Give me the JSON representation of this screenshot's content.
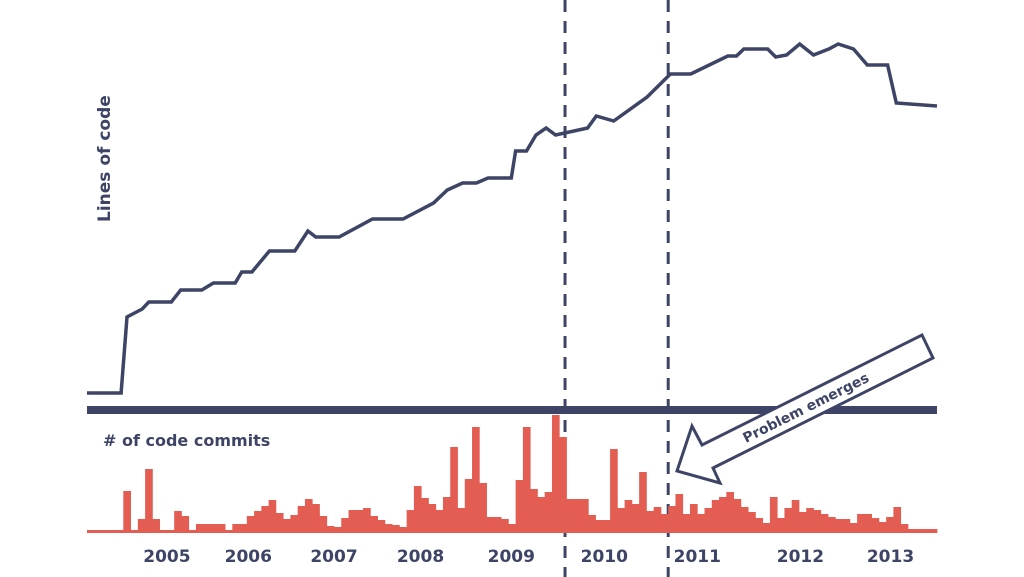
{
  "colors": {
    "line": "#3d4466",
    "bars": "#e35d52",
    "background": "#ffffff"
  },
  "chart_data": [
    {
      "type": "line",
      "title": "",
      "ylabel": "Lines of code",
      "xlabel": "",
      "x_units": "months since start",
      "y_units": "relative (unlabeled axis)",
      "xlim": [
        0,
        117
      ],
      "ylim": [
        0,
        349
      ],
      "grid": false,
      "points": [
        [
          0,
          0
        ],
        [
          4.7,
          0
        ],
        [
          5.5,
          76
        ],
        [
          7.6,
          84
        ],
        [
          8.5,
          91
        ],
        [
          11.6,
          91
        ],
        [
          12.9,
          103
        ],
        [
          15.8,
          103
        ],
        [
          17.4,
          110
        ],
        [
          20.4,
          110
        ],
        [
          21.3,
          121
        ],
        [
          22.7,
          121
        ],
        [
          25.1,
          142
        ],
        [
          28.6,
          142
        ],
        [
          30.4,
          162
        ],
        [
          31.5,
          156
        ],
        [
          34.7,
          156
        ],
        [
          39.3,
          174
        ],
        [
          43.5,
          174
        ],
        [
          47.7,
          190
        ],
        [
          49.6,
          203
        ],
        [
          51.7,
          210
        ],
        [
          53.6,
          210
        ],
        [
          55.2,
          215
        ],
        [
          58.4,
          215
        ],
        [
          59.0,
          242
        ],
        [
          60.5,
          242
        ],
        [
          61.8,
          258
        ],
        [
          63.2,
          265
        ],
        [
          64.5,
          258
        ],
        [
          68.9,
          265
        ],
        [
          70.1,
          277
        ],
        [
          72.5,
          272
        ],
        [
          77.1,
          296
        ],
        [
          80.3,
          319
        ],
        [
          83.1,
          319
        ],
        [
          88.2,
          337
        ],
        [
          89.4,
          337
        ],
        [
          90.4,
          344
        ],
        [
          93.7,
          344
        ],
        [
          94.8,
          336
        ],
        [
          96.3,
          338
        ],
        [
          98.1,
          349
        ],
        [
          100,
          338
        ],
        [
          102.1,
          344
        ],
        [
          103.4,
          349
        ],
        [
          105.5,
          344
        ],
        [
          107.4,
          328
        ],
        [
          110.2,
          328
        ],
        [
          111.4,
          290
        ],
        [
          117,
          287
        ]
      ]
    },
    {
      "type": "bar",
      "title": "",
      "ylabel": "# of code commits",
      "x_units": "months since start",
      "y_units": "relative (unlabeled axis)",
      "ylim": [
        0,
        116
      ],
      "grid": false,
      "segments": [
        [
          5,
          1
        ],
        [
          1,
          40
        ],
        [
          1,
          1
        ],
        [
          1,
          12
        ],
        [
          1,
          62
        ],
        [
          1,
          12
        ],
        [
          2,
          1
        ],
        [
          1,
          20
        ],
        [
          1,
          15
        ],
        [
          1,
          1
        ],
        [
          4,
          7
        ],
        [
          1,
          1
        ],
        [
          2,
          7
        ],
        [
          1,
          15
        ],
        [
          1,
          20
        ],
        [
          1,
          25
        ],
        [
          1,
          31
        ],
        [
          1,
          18
        ],
        [
          1,
          12
        ],
        [
          1,
          16
        ],
        [
          1,
          25
        ],
        [
          1,
          32
        ],
        [
          1,
          27
        ],
        [
          1,
          15
        ],
        [
          1,
          5
        ],
        [
          1,
          4
        ],
        [
          1,
          13
        ],
        [
          2,
          21
        ],
        [
          1,
          23
        ],
        [
          1,
          15
        ],
        [
          1,
          11
        ],
        [
          1,
          7
        ],
        [
          1,
          6
        ],
        [
          1,
          4
        ],
        [
          1,
          21
        ],
        [
          1,
          45
        ],
        [
          1,
          33
        ],
        [
          1,
          27
        ],
        [
          1,
          21
        ],
        [
          1,
          34
        ],
        [
          1,
          84
        ],
        [
          1,
          23
        ],
        [
          1,
          52
        ],
        [
          1,
          104
        ],
        [
          1,
          48
        ],
        [
          2,
          14
        ],
        [
          1,
          12
        ],
        [
          1,
          7
        ],
        [
          1,
          51
        ],
        [
          1,
          104
        ],
        [
          1,
          42
        ],
        [
          1,
          34
        ],
        [
          1,
          39
        ],
        [
          1,
          116
        ],
        [
          1,
          94
        ],
        [
          3,
          32
        ],
        [
          1,
          16
        ],
        [
          2,
          11
        ],
        [
          1,
          82
        ],
        [
          1,
          23
        ],
        [
          1,
          31
        ],
        [
          1,
          27
        ],
        [
          1,
          59
        ],
        [
          1,
          20
        ],
        [
          1,
          24
        ],
        [
          1,
          17
        ],
        [
          1,
          25
        ],
        [
          1,
          37
        ],
        [
          1,
          17
        ],
        [
          1,
          27
        ],
        [
          1,
          17
        ],
        [
          1,
          23
        ],
        [
          1,
          31
        ],
        [
          1,
          34
        ],
        [
          1,
          39
        ],
        [
          1,
          32
        ],
        [
          1,
          24
        ],
        [
          1,
          19
        ],
        [
          1,
          13
        ],
        [
          1,
          8
        ],
        [
          1,
          34
        ],
        [
          1,
          13
        ],
        [
          1,
          23
        ],
        [
          1,
          31
        ],
        [
          1,
          19
        ],
        [
          1,
          23
        ],
        [
          1,
          21
        ],
        [
          1,
          17
        ],
        [
          1,
          14
        ],
        [
          2,
          12
        ],
        [
          1,
          8
        ],
        [
          2,
          17
        ],
        [
          1,
          13
        ],
        [
          1,
          9
        ],
        [
          1,
          14
        ],
        [
          1,
          24
        ],
        [
          1,
          7
        ],
        [
          4,
          2
        ]
      ]
    }
  ],
  "x_axis": {
    "ticks": [
      {
        "label": "2005",
        "month": 11.0
      },
      {
        "label": "2006",
        "month": 22.2
      },
      {
        "label": "2007",
        "month": 34.0
      },
      {
        "label": "2008",
        "month": 45.9
      },
      {
        "label": "2009",
        "month": 58.4
      },
      {
        "label": "2010",
        "month": 71.2
      },
      {
        "label": "2011",
        "month": 84.0
      },
      {
        "label": "2012",
        "month": 98.2
      },
      {
        "label": "2013",
        "month": 110.6
      }
    ]
  },
  "markers": [
    {
      "month": 65.8
    },
    {
      "month": 80.0
    }
  ],
  "annotation": {
    "text": "Problem emerges"
  }
}
